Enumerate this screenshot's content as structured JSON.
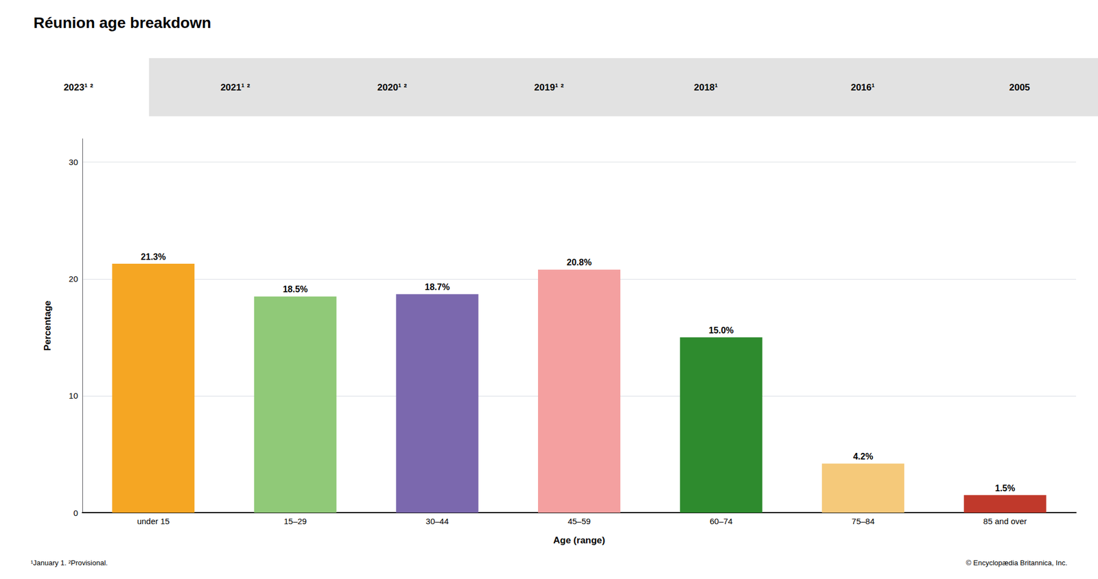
{
  "chart_data": {
    "type": "bar",
    "title": "Réunion age breakdown",
    "categories": [
      "under 15",
      "15–29",
      "30–44",
      "45–59",
      "60–74",
      "75–84",
      "85 and over"
    ],
    "values": [
      21.3,
      18.5,
      18.7,
      20.8,
      15.0,
      4.2,
      1.5
    ],
    "value_labels": [
      "21.3%",
      "18.5%",
      "18.7%",
      "20.8%",
      "15.0%",
      "4.2%",
      "1.5%"
    ],
    "colors": [
      "#F5A623",
      "#90C978",
      "#7B68AE",
      "#F4A0A0",
      "#2E8B2E",
      "#F5C97A",
      "#C0392B"
    ],
    "xlabel": "Age (range)",
    "ylabel": "Percentage",
    "ylim": [
      0,
      32
    ],
    "yticks": [
      0,
      10,
      20,
      30
    ],
    "grid": true,
    "data_labels": true,
    "tabs": [
      "2023¹ ²",
      "2021¹ ²",
      "2020¹ ²",
      "2019¹ ²",
      "2018¹",
      "2016¹",
      "2005"
    ],
    "footnotes": [
      "¹January 1. ²Provisional.",
      "© Encyclopædia Britannica, Inc."
    ]
  }
}
